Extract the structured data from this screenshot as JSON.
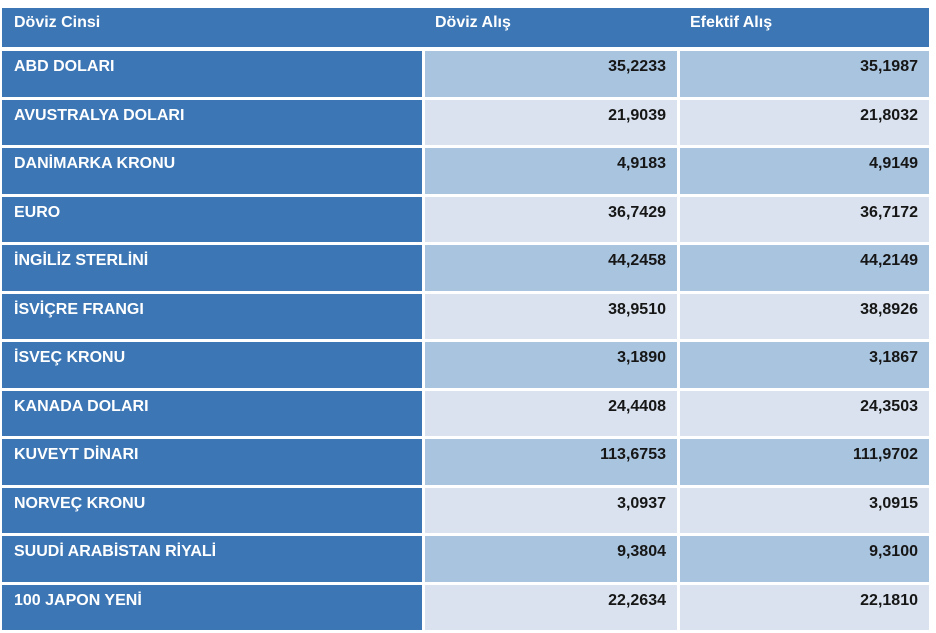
{
  "table": {
    "columns": [
      {
        "label": "Döviz Cinsi"
      },
      {
        "label": "Döviz Alış"
      },
      {
        "label": "Efektif Alış"
      }
    ],
    "rows": [
      {
        "currency": "ABD DOLARI",
        "doviz_alis": "35,2233",
        "efektif_alis": "35,1987"
      },
      {
        "currency": "AVUSTRALYA DOLARI",
        "doviz_alis": "21,9039",
        "efektif_alis": "21,8032"
      },
      {
        "currency": "DANİMARKA KRONU",
        "doviz_alis": "4,9183",
        "efektif_alis": "4,9149"
      },
      {
        "currency": "EURO",
        "doviz_alis": "36,7429",
        "efektif_alis": "36,7172"
      },
      {
        "currency": "İNGİLİZ STERLİNİ",
        "doviz_alis": "44,2458",
        "efektif_alis": "44,2149"
      },
      {
        "currency": "İSVİÇRE FRANGI",
        "doviz_alis": "38,9510",
        "efektif_alis": "38,8926"
      },
      {
        "currency": "İSVEÇ KRONU",
        "doviz_alis": "3,1890",
        "efektif_alis": "3,1867"
      },
      {
        "currency": "KANADA DOLARI",
        "doviz_alis": "24,4408",
        "efektif_alis": "24,3503"
      },
      {
        "currency": "KUVEYT DİNARI",
        "doviz_alis": "113,6753",
        "efektif_alis": "111,9702"
      },
      {
        "currency": "NORVEÇ KRONU",
        "doviz_alis": "3,0937",
        "efektif_alis": "3,0915"
      },
      {
        "currency": "SUUDİ ARABİSTAN RİYALİ",
        "doviz_alis": "9,3804",
        "efektif_alis": "9,3100"
      },
      {
        "currency": "100 JAPON YENİ",
        "doviz_alis": "22,2634",
        "efektif_alis": "22,1810"
      }
    ]
  },
  "colors": {
    "header-blue": "#3c76b4",
    "band-dark": "#a9c4df",
    "band-light": "#d9e2ee",
    "value-text": "#161616"
  }
}
